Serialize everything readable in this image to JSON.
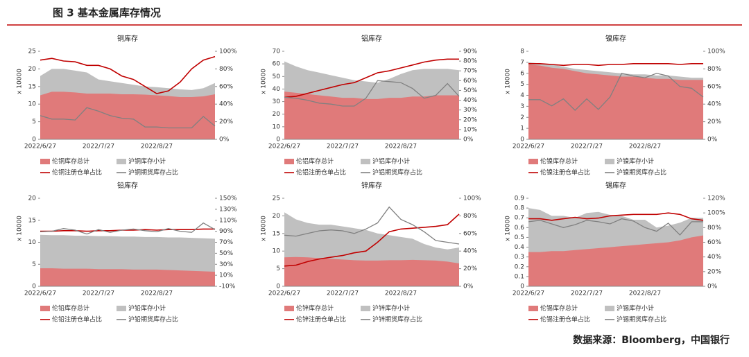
{
  "header": {
    "title": "图 3 基本金属库存情况"
  },
  "footer": "数据来源：Bloomberg，中国银行",
  "chart_data": [
    {
      "type": "area",
      "title": "铜库存",
      "ylabel": "x 10000",
      "categories": [
        "2022/6/27",
        null,
        null,
        null,
        null,
        "2022/7/27",
        null,
        null,
        null,
        null,
        "2022/8/27",
        null,
        null,
        null,
        null,
        null
      ],
      "ylim": [
        0,
        25
      ],
      "yticks": [
        0,
        5,
        10,
        15,
        20,
        25
      ],
      "y2lim": [
        0,
        100
      ],
      "y2ticks": [
        {
          "value": 0,
          "label": "0%"
        },
        {
          "value": 20,
          "label": "20%"
        },
        {
          "value": 40,
          "label": "40%"
        },
        {
          "value": 60,
          "label": "60%"
        },
        {
          "value": 80,
          "label": "80%"
        },
        {
          "value": 100,
          "label": "100%"
        }
      ],
      "series": [
        {
          "name": "伦铜库存总计",
          "color": "#e07a7a",
          "values": [
            12.5,
            13.5,
            13.5,
            13.3,
            13,
            13,
            13,
            12.8,
            12.8,
            12.7,
            12.5,
            12.3,
            12,
            12,
            12.2,
            12.8
          ]
        },
        {
          "name": "沪铜库存小计",
          "color": "#c0c0c0",
          "values": [
            18,
            20,
            20,
            19.5,
            19,
            17,
            16.5,
            16,
            15.5,
            15,
            14.8,
            14.5,
            14.2,
            14,
            14.5,
            16
          ]
        },
        {
          "name": "伦铜注册仓单占比",
          "color": "#c00000",
          "axis": "y2",
          "values": [
            90,
            92,
            89,
            88,
            84,
            84,
            80,
            72,
            68,
            60,
            52,
            55,
            65,
            80,
            90,
            94
          ]
        },
        {
          "name": "沪铜期货库存占比",
          "color": "#808080",
          "axis": "y2",
          "values": [
            27,
            23,
            23,
            22,
            36,
            32,
            27,
            24,
            23,
            14,
            14,
            13,
            13,
            13,
            26,
            15
          ]
        }
      ]
    },
    {
      "type": "area",
      "title": "铝库存",
      "ylabel": "x 10000",
      "categories": [
        "2022/6/27",
        null,
        null,
        null,
        null,
        "2022/7/27",
        null,
        null,
        null,
        null,
        "2022/8/27",
        null,
        null,
        null,
        null,
        null
      ],
      "ylim": [
        0,
        70
      ],
      "yticks": [
        0,
        10,
        20,
        30,
        40,
        50,
        60,
        70
      ],
      "y2lim": [
        0,
        90
      ],
      "y2ticks": [
        {
          "value": 0,
          "label": "0%"
        },
        {
          "value": 10,
          "label": "10%"
        },
        {
          "value": 20,
          "label": "20%"
        },
        {
          "value": 30,
          "label": "30%"
        },
        {
          "value": 40,
          "label": "40%"
        },
        {
          "value": 50,
          "label": "50%"
        },
        {
          "value": 60,
          "label": "60%"
        },
        {
          "value": 70,
          "label": "70%"
        },
        {
          "value": 80,
          "label": "80%"
        },
        {
          "value": 90,
          "label": "90%"
        }
      ],
      "series": [
        {
          "name": "伦铝库存总计",
          "color": "#e07a7a",
          "values": [
            38,
            37,
            36,
            35,
            34,
            33,
            33,
            32,
            32,
            33,
            33,
            34,
            34,
            35,
            35,
            35
          ]
        },
        {
          "name": "沪铝库存小计",
          "color": "#c0c0c0",
          "values": [
            62,
            58,
            55,
            53,
            51,
            49,
            47,
            46,
            45,
            48,
            52,
            55,
            56,
            56,
            56,
            55
          ]
        },
        {
          "name": "伦铝注册仓单占比",
          "color": "#c00000",
          "axis": "y2",
          "values": [
            43,
            44,
            47,
            50,
            53,
            56,
            58,
            63,
            68,
            70,
            73,
            76,
            79,
            81,
            82,
            82
          ]
        },
        {
          "name": "沪铝期货库存占比",
          "color": "#808080",
          "axis": "y2",
          "values": [
            43,
            42,
            40,
            37,
            36,
            34,
            34,
            42,
            60,
            59,
            58,
            52,
            42,
            45,
            57,
            44
          ]
        }
      ]
    },
    {
      "type": "area",
      "title": "镍库存",
      "ylabel": "x 10000",
      "categories": [
        "2022/6/27",
        null,
        null,
        null,
        null,
        "2022/7/27",
        null,
        null,
        null,
        null,
        "2022/8/27",
        null,
        null,
        null,
        null,
        null
      ],
      "ylim": [
        0,
        8
      ],
      "yticks": [
        0,
        1,
        2,
        3,
        4,
        5,
        6,
        7,
        8
      ],
      "y2lim": [
        0,
        100
      ],
      "y2ticks": [
        {
          "value": 0,
          "label": "0%"
        },
        {
          "value": 20,
          "label": "20%"
        },
        {
          "value": 40,
          "label": "40%"
        },
        {
          "value": 60,
          "label": "60%"
        },
        {
          "value": 80,
          "label": "80%"
        },
        {
          "value": 100,
          "label": "100%"
        }
      ],
      "series": [
        {
          "name": "伦镍库存总计",
          "color": "#e07a7a",
          "values": [
            6.8,
            6.7,
            6.5,
            6.4,
            6.2,
            6.0,
            5.9,
            5.8,
            5.7,
            5.7,
            5.6,
            5.5,
            5.5,
            5.4,
            5.4,
            5.4
          ]
        },
        {
          "name": "沪镍库存小计",
          "color": "#c0c0c0",
          "values": [
            7.0,
            6.9,
            6.8,
            6.6,
            6.4,
            6.3,
            6.2,
            6.1,
            6.0,
            5.9,
            5.9,
            5.8,
            5.8,
            5.7,
            5.6,
            5.6
          ]
        },
        {
          "name": "伦镍注册仓单占比",
          "color": "#c00000",
          "axis": "y2",
          "values": [
            86,
            86,
            85,
            84,
            85,
            85,
            84,
            85,
            85,
            86,
            86,
            86,
            86,
            85,
            86,
            86
          ]
        },
        {
          "name": "沪镍期货库存占比",
          "color": "#808080",
          "axis": "y2",
          "values": [
            45,
            45,
            38,
            46,
            33,
            46,
            34,
            48,
            75,
            72,
            70,
            75,
            72,
            60,
            58,
            48
          ]
        }
      ]
    },
    {
      "type": "area",
      "title": "铅库存",
      "ylabel": "x 10000",
      "categories": [
        "2022/6/27",
        null,
        null,
        null,
        null,
        "2022/7/27",
        null,
        null,
        null,
        null,
        "2022/8/27",
        null,
        null,
        null,
        null,
        null
      ],
      "ylim": [
        0,
        20
      ],
      "yticks": [
        0,
        5,
        10,
        15,
        20
      ],
      "y2lim": [
        -10,
        150
      ],
      "y2ticks": [
        {
          "value": -10,
          "label": "-10%"
        },
        {
          "value": 10,
          "label": "10%"
        },
        {
          "value": 30,
          "label": "30%"
        },
        {
          "value": 50,
          "label": "50%"
        },
        {
          "value": 70,
          "label": "70%"
        },
        {
          "value": 90,
          "label": "90%"
        },
        {
          "value": 110,
          "label": "110%"
        },
        {
          "value": 130,
          "label": "130%"
        },
        {
          "value": 150,
          "label": "150%"
        }
      ],
      "series": [
        {
          "name": "伦铅库存总计",
          "color": "#e07a7a",
          "values": [
            4.1,
            4.1,
            4.0,
            4.0,
            4.0,
            3.9,
            3.9,
            3.9,
            3.8,
            3.8,
            3.8,
            3.7,
            3.6,
            3.5,
            3.4,
            3.3
          ]
        },
        {
          "name": "沪铅库存小计",
          "color": "#c0c0c0",
          "values": [
            11.7,
            11.6,
            11.6,
            11.5,
            11.5,
            11.4,
            11.4,
            11.3,
            11.3,
            11.2,
            11.2,
            11.1,
            11.1,
            11.0,
            10.9,
            10.8
          ]
        },
        {
          "name": "伦铅注册仓单占比",
          "color": "#c00000",
          "axis": "y2",
          "values": [
            90,
            90,
            91,
            91,
            90,
            91,
            91,
            92,
            92,
            93,
            92,
            93,
            93,
            93,
            94,
            94
          ]
        },
        {
          "name": "沪铅期货库存占比",
          "color": "#808080",
          "axis": "y2",
          "values": [
            89,
            90,
            95,
            92,
            85,
            93,
            88,
            92,
            94,
            91,
            89,
            95,
            90,
            88,
            105,
            93
          ]
        }
      ]
    },
    {
      "type": "area",
      "title": "锌库存",
      "ylabel": "x 10000",
      "categories": [
        "2022/6/27",
        null,
        null,
        null,
        null,
        "2022/7/27",
        null,
        null,
        null,
        null,
        "2022/8/27",
        null,
        null,
        null,
        null,
        null
      ],
      "ylim": [
        0,
        25
      ],
      "yticks": [
        0,
        5,
        10,
        15,
        20,
        25
      ],
      "y2lim": [
        0,
        100
      ],
      "y2ticks": [
        {
          "value": 0,
          "label": "0%"
        },
        {
          "value": 20,
          "label": "20%"
        },
        {
          "value": 40,
          "label": "40%"
        },
        {
          "value": 60,
          "label": "60%"
        },
        {
          "value": 80,
          "label": "80%"
        },
        {
          "value": 100,
          "label": "100%"
        }
      ],
      "series": [
        {
          "name": "伦锌库存总计",
          "color": "#e07a7a",
          "values": [
            8.2,
            8.3,
            8.2,
            8.0,
            7.8,
            7.6,
            7.4,
            7.3,
            7.3,
            7.4,
            7.4,
            7.5,
            7.4,
            7.3,
            7.0,
            6.5
          ]
        },
        {
          "name": "沪锌库存小计",
          "color": "#c0c0c0",
          "values": [
            21,
            19,
            18,
            17.5,
            17.5,
            17,
            16.5,
            16,
            15,
            14.5,
            14,
            13.5,
            12,
            11,
            10.5,
            11
          ]
        },
        {
          "name": "伦锌注册仓单占比",
          "color": "#c00000",
          "axis": "y2",
          "values": [
            23,
            24,
            28,
            31,
            33,
            35,
            38,
            40,
            50,
            62,
            65,
            66,
            67,
            68,
            70,
            82
          ]
        },
        {
          "name": "沪锌期货库存占比",
          "color": "#808080",
          "axis": "y2",
          "values": [
            58,
            57,
            60,
            63,
            64,
            63,
            60,
            65,
            72,
            90,
            76,
            70,
            62,
            52,
            50,
            48
          ]
        }
      ]
    },
    {
      "type": "area",
      "title": "锡库存",
      "ylabel": "x 10000",
      "categories": [
        "2022/6/27",
        null,
        null,
        null,
        null,
        "2022/7/27",
        null,
        null,
        null,
        null,
        "2022/8/27",
        null,
        null,
        null,
        null,
        null
      ],
      "ylim": [
        0,
        0.9
      ],
      "yticks": [
        0,
        0.1,
        0.2,
        0.3,
        0.4,
        0.5,
        0.6,
        0.7,
        0.8,
        0.9
      ],
      "y2lim": [
        0,
        120
      ],
      "y2ticks": [
        {
          "value": 0,
          "label": "0%"
        },
        {
          "value": 20,
          "label": "20%"
        },
        {
          "value": 40,
          "label": "40%"
        },
        {
          "value": 60,
          "label": "60%"
        },
        {
          "value": 80,
          "label": "80%"
        },
        {
          "value": 100,
          "label": "100%"
        },
        {
          "value": 120,
          "label": "120%"
        }
      ],
      "series": [
        {
          "name": "伦锡库存总计",
          "color": "#e07a7a",
          "values": [
            0.35,
            0.35,
            0.36,
            0.36,
            0.37,
            0.38,
            0.39,
            0.4,
            0.41,
            0.42,
            0.43,
            0.44,
            0.45,
            0.47,
            0.5,
            0.52
          ]
        },
        {
          "name": "沪锡库存小计",
          "color": "#c0c0c0",
          "values": [
            0.8,
            0.78,
            0.72,
            0.72,
            0.7,
            0.75,
            0.76,
            0.73,
            0.72,
            0.68,
            0.68,
            0.6,
            0.62,
            0.65,
            0.7,
            0.7
          ]
        },
        {
          "name": "伦锡注册仓单占比",
          "color": "#c00000",
          "axis": "y2",
          "values": [
            92,
            92,
            90,
            92,
            94,
            92,
            93,
            96,
            97,
            98,
            98,
            98,
            100,
            98,
            92,
            90
          ]
        },
        {
          "name": "沪锡期货库存占比",
          "color": "#808080",
          "axis": "y2",
          "values": [
            88,
            90,
            85,
            80,
            84,
            90,
            88,
            85,
            92,
            89,
            80,
            75,
            86,
            70,
            88,
            88
          ]
        }
      ]
    }
  ]
}
